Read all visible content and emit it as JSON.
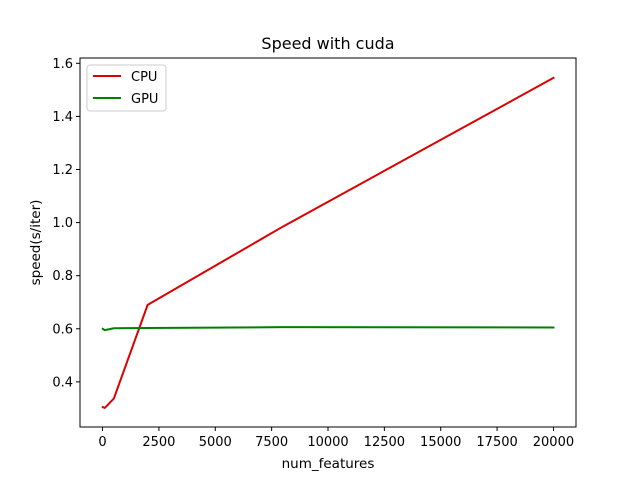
{
  "chart_data": {
    "type": "line",
    "title": "Speed with cuda",
    "xlabel": "num_features",
    "ylabel": "speed(s/iter)",
    "xlim": [
      -1000,
      21000
    ],
    "ylim": [
      0.23,
      1.62
    ],
    "xticks": [
      0,
      2500,
      5000,
      7500,
      10000,
      12500,
      15000,
      17500,
      20000
    ],
    "yticks": [
      0.4,
      0.6,
      0.8,
      1.0,
      1.2,
      1.4,
      1.6
    ],
    "xtick_labels": [
      "0",
      "2500",
      "5000",
      "7500",
      "10000",
      "12500",
      "15000",
      "17500",
      "20000"
    ],
    "ytick_labels": [
      "0.4",
      "0.6",
      "0.8",
      "1.0",
      "1.2",
      "1.4",
      "1.6"
    ],
    "grid": false,
    "legend_position": "top-left",
    "series": [
      {
        "name": "CPU",
        "color": "#dd0000",
        "x": [
          10,
          100,
          500,
          2000,
          8000,
          20000
        ],
        "y": [
          0.305,
          0.302,
          0.337,
          0.69,
          0.985,
          1.545
        ]
      },
      {
        "name": "GPU",
        "color": "#008000",
        "x": [
          10,
          100,
          500,
          2000,
          8000,
          20000
        ],
        "y": [
          0.6,
          0.595,
          0.602,
          0.603,
          0.606,
          0.605
        ]
      }
    ]
  }
}
